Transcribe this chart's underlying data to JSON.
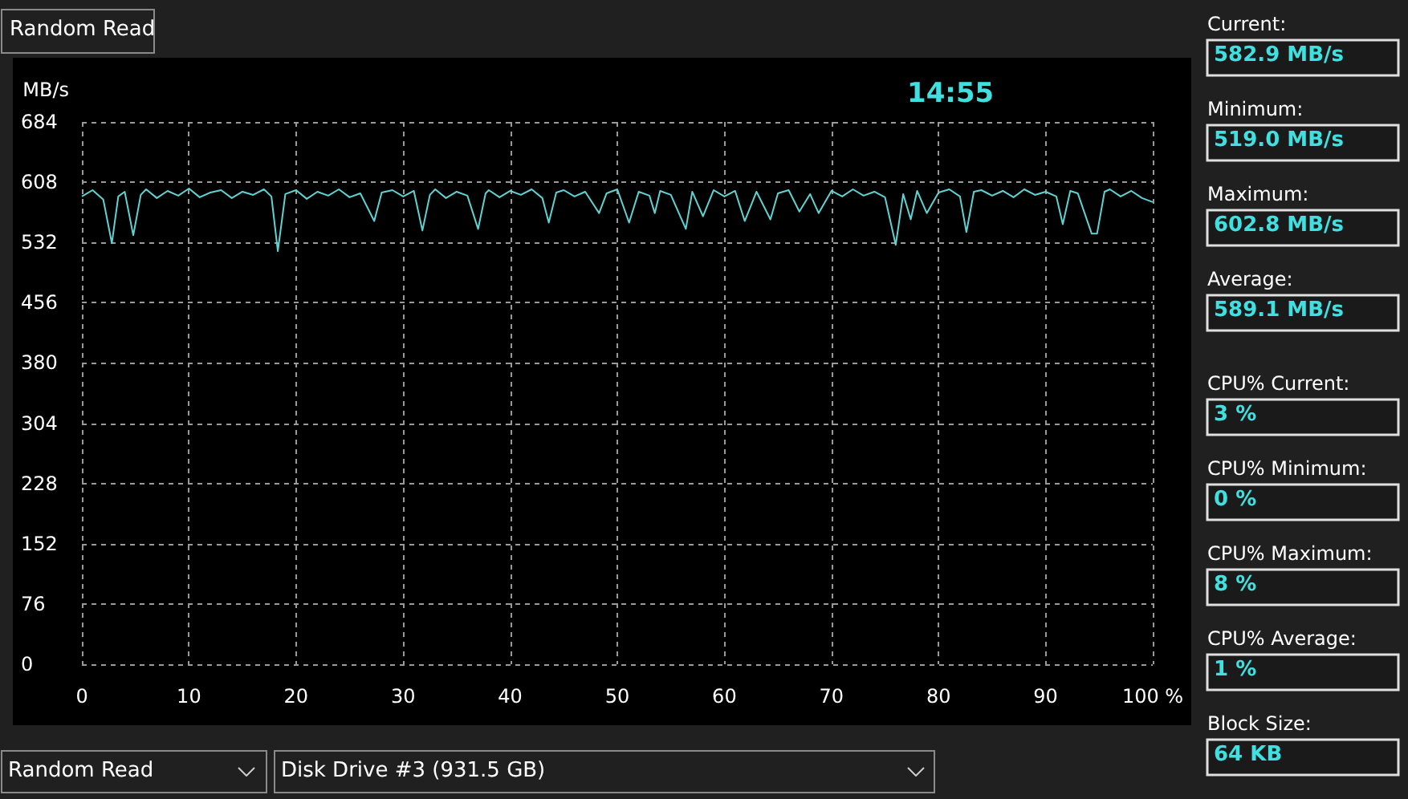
{
  "chart_data": {
    "type": "line",
    "title": "Random Read",
    "ylabel": "MB/s",
    "x": [
      0,
      1,
      2,
      2.8,
      3.4,
      4,
      4.8,
      5.5,
      6,
      7,
      8,
      9,
      10,
      11,
      12,
      13,
      14,
      15,
      16,
      17,
      17.7,
      18.3,
      19,
      20,
      21,
      22,
      23,
      24,
      25,
      26,
      27.3,
      28,
      29,
      30,
      31,
      31.8,
      32.5,
      33,
      34,
      35,
      36,
      37,
      37.7,
      38,
      39,
      40,
      41,
      42,
      43,
      43.6,
      44.3,
      45,
      46,
      47,
      48.3,
      49,
      50,
      51.1,
      52,
      53,
      53.5,
      54,
      55,
      56.4,
      57,
      58,
      59,
      60,
      61,
      61.9,
      63,
      64.3,
      65,
      66,
      67,
      68,
      68.8,
      70,
      71,
      72,
      73,
      74,
      75,
      76,
      76.7,
      77.4,
      78,
      78.9,
      80,
      81,
      82,
      82.6,
      83.3,
      84,
      85,
      86,
      87,
      88,
      89,
      90,
      91,
      91.6,
      92.3,
      93,
      94.3,
      94.8,
      95.5,
      96,
      97,
      98,
      99,
      100
    ],
    "series": [
      {
        "color": "#5fd3d3",
        "values": [
          590,
          598,
          586,
          531,
          590,
          596,
          541,
          592,
          599,
          588,
          597,
          591,
          600,
          589,
          595,
          598,
          588,
          596,
          592,
          599,
          590,
          521,
          593,
          598,
          587,
          596,
          591,
          599,
          589,
          594,
          559,
          595,
          598,
          590,
          597,
          547,
          592,
          599,
          588,
          596,
          591,
          549,
          594,
          598,
          589,
          597,
          592,
          599,
          588,
          557,
          595,
          598,
          590,
          596,
          569,
          594,
          599,
          557,
          596,
          591,
          569,
          597,
          592,
          549,
          596,
          565,
          598,
          590,
          597,
          559,
          596,
          561,
          594,
          598,
          571,
          593,
          569,
          597,
          590,
          599,
          591,
          596,
          589,
          529,
          593,
          561,
          597,
          569,
          595,
          599,
          590,
          545,
          596,
          598,
          591,
          597,
          589,
          599,
          592,
          596,
          590,
          555,
          597,
          594,
          543,
          543,
          596,
          599,
          590,
          597,
          588,
          583
        ]
      }
    ],
    "xlim": [
      0,
      100
    ],
    "xticks": [
      0,
      10,
      20,
      30,
      40,
      50,
      60,
      70,
      80,
      90,
      {
        "value": 100,
        "label": "100 %"
      }
    ],
    "ylim": [
      0,
      684
    ],
    "yticks": [
      0,
      76,
      152,
      228,
      304,
      380,
      456,
      532,
      608,
      684
    ],
    "grid": true,
    "marker": "none",
    "line_style": "solid",
    "annotations": [
      "14:55",
      "Current:",
      "582.9 MB/s",
      "Minimum:",
      "519.0 MB/s",
      "Maximum:",
      "602.8 MB/s",
      "Average:",
      "589.1 MB/s",
      "CPU% Current:",
      "3 %",
      "CPU% Minimum:",
      "0 %",
      "CPU% Maximum:",
      "8 %",
      "CPU% Average:",
      "1 %",
      "Block Size:",
      "64 KB",
      "Random Read",
      "Disk Drive #3 (931.5 GB)"
    ]
  }
}
